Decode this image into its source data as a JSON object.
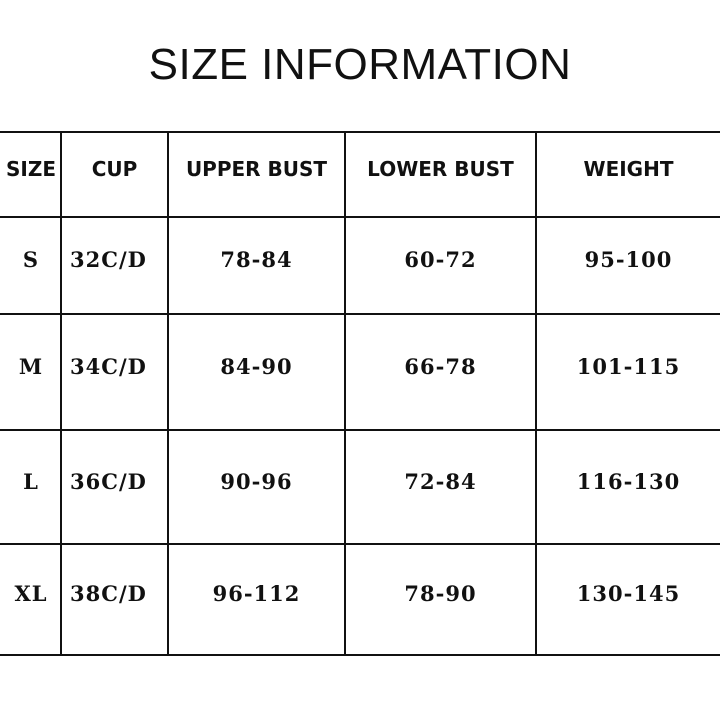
{
  "title": "SIZE INFORMATION",
  "headers": [
    "SIZE",
    "CUP",
    "UPPER BUST",
    "LOWER BUST",
    "WEIGHT"
  ],
  "rows": [
    [
      "S",
      "32C/D",
      "78-84",
      "60-72",
      "95-100"
    ],
    [
      "M",
      "34C/D",
      "84-90",
      "66-78",
      "101-115"
    ],
    [
      "L",
      "36C/D",
      "90-96",
      "72-84",
      "116-130"
    ],
    [
      "XL",
      "38C/D",
      "96-112",
      "78-90",
      "130-145"
    ]
  ]
}
